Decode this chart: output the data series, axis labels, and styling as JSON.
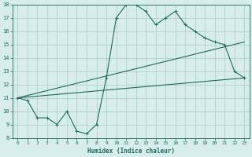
{
  "title": "",
  "xlabel": "Humidex (Indice chaleur)",
  "ylabel": "",
  "background_color": "#d6edea",
  "grid_color": "#b2d0cc",
  "line_color": "#1a6b5e",
  "xlim": [
    -0.5,
    23.5
  ],
  "ylim": [
    8,
    18
  ],
  "xticks": [
    0,
    1,
    2,
    3,
    4,
    5,
    6,
    7,
    8,
    9,
    10,
    11,
    12,
    13,
    14,
    15,
    16,
    17,
    18,
    19,
    20,
    21,
    22,
    23
  ],
  "yticks": [
    8,
    9,
    10,
    11,
    12,
    13,
    14,
    15,
    16,
    17,
    18
  ],
  "line1_x": [
    0,
    1,
    2,
    3,
    4,
    5,
    6,
    7,
    8,
    9,
    10,
    11,
    12,
    13,
    14,
    15,
    16,
    17,
    18,
    19,
    20,
    21,
    22,
    23
  ],
  "line1_y": [
    11.0,
    10.8,
    9.5,
    9.5,
    9.0,
    10.0,
    8.5,
    8.3,
    9.0,
    12.5,
    17.0,
    18.0,
    18.0,
    17.5,
    16.5,
    17.0,
    17.5,
    16.5,
    16.0,
    15.5,
    15.2,
    15.0,
    13.0,
    12.5
  ],
  "line2_x": [
    0,
    23
  ],
  "line2_y": [
    11.0,
    12.5
  ],
  "line3_x": [
    0,
    23
  ],
  "line3_y": [
    11.0,
    15.2
  ]
}
